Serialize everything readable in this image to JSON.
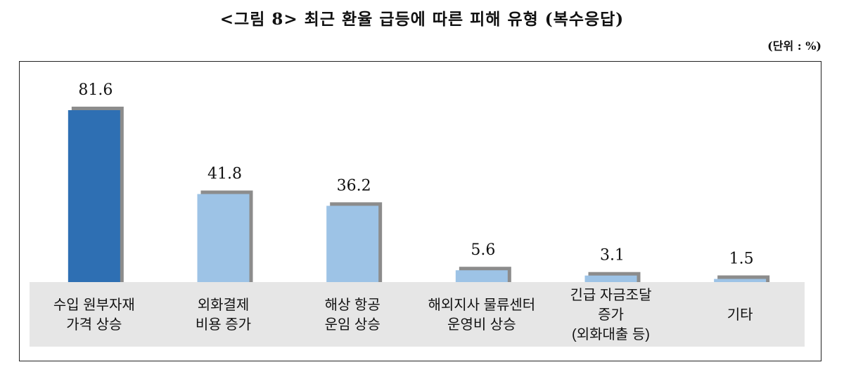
{
  "title": "<그림 8> 최근 환율 급등에 따른 피해 유형 (복수응답)",
  "unit": "(단위 : %)",
  "colors": {
    "highlight": "#2e6fb3",
    "bar": "#9dc3e6",
    "shadow": "#8c8c8c",
    "band": "#e6e6e6"
  },
  "chart_data": {
    "type": "bar",
    "title": "<그림 8> 최근 환율 급등에 따른 피해 유형 (복수응답)",
    "unit": "(단위 : %)",
    "categories": [
      [
        "수입 원부자재",
        "가격 상승"
      ],
      [
        "외화결제",
        "비용 증가"
      ],
      [
        "해상 항공",
        "운임 상승"
      ],
      [
        "해외지사 물류센터",
        "운영비 상승"
      ],
      [
        "긴급 자금조달",
        "증가",
        "(외화대출 등)"
      ],
      [
        "기타"
      ]
    ],
    "values": [
      81.6,
      41.8,
      36.2,
      5.6,
      3.1,
      1.5
    ],
    "value_labels": [
      "81.6",
      "41.8",
      "36.2",
      "5.6",
      "3.1",
      "1.5"
    ],
    "highlight_index": 0,
    "ylim": [
      0,
      100
    ],
    "grid": false,
    "legend": "none"
  }
}
